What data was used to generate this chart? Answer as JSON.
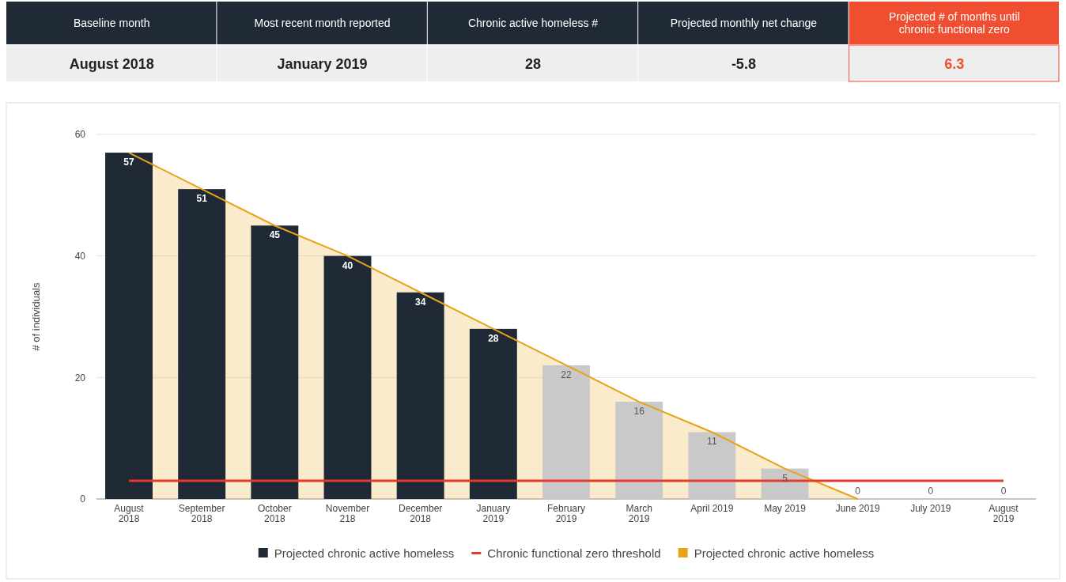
{
  "chart_data": [
    {
      "type": "other",
      "categories": [
        "Baseline month",
        "Most recent month reported",
        "Chronic active homeless #",
        "Projected monthly net change",
        "Projected # of months until chronic functional zero"
      ],
      "value_labels": [
        "August 2018",
        "January 2019",
        "28",
        "-5.8",
        "6.3"
      ],
      "colors": [
        "#1f2a36",
        "#1f2a36",
        "#1f2a36",
        "#1f2a36",
        "#f04e30"
      ]
    },
    {
      "type": "bar",
      "ylabel": "# of individuals",
      "categories": [
        "August\n2018",
        "September\n2018",
        "October\n2018",
        "November\n218",
        "December\n2018",
        "January\n2019",
        "February\n2019",
        "March\n2019",
        "April 2019",
        "May 2019",
        "June 2019",
        "July 2019",
        "August\n2019"
      ],
      "series": [
        {
          "type": "bar",
          "name": "Projected chronic active homeless",
          "colors": [
            "#1f2a36",
            "#1f2a36",
            "#1f2a36",
            "#1f2a36",
            "#1f2a36",
            "#1f2a36",
            "#c9c9c9",
            "#c9c9c9",
            "#c9c9c9",
            "#c9c9c9",
            "#c9c9c9",
            "#c9c9c9",
            "#c9c9c9"
          ],
          "color": "#1f2a36",
          "values": [
            57,
            51,
            45,
            40,
            34,
            28,
            22,
            16,
            11,
            5,
            0,
            0,
            0
          ],
          "value_labels": [
            "57",
            "51",
            "45",
            "40",
            "34",
            "28",
            "22",
            "16",
            "11",
            "5",
            "0",
            "0",
            "0"
          ]
        },
        {
          "type": "line",
          "name": "Chronic functional zero threshold",
          "color": "#e8392a",
          "values": [
            3,
            3,
            3,
            3,
            3,
            3,
            3,
            3,
            3,
            3,
            3,
            3,
            3
          ]
        },
        {
          "type": "area",
          "name": "Projected chronic active homeless",
          "color": "#e8a317",
          "values": [
            57,
            51,
            45,
            40,
            34,
            28,
            22,
            16,
            11,
            5,
            0,
            null,
            null
          ]
        }
      ],
      "ylim": [
        0,
        60
      ],
      "yticks": [
        0,
        20,
        40,
        60
      ],
      "grid": "y",
      "legend": "bottom"
    }
  ]
}
